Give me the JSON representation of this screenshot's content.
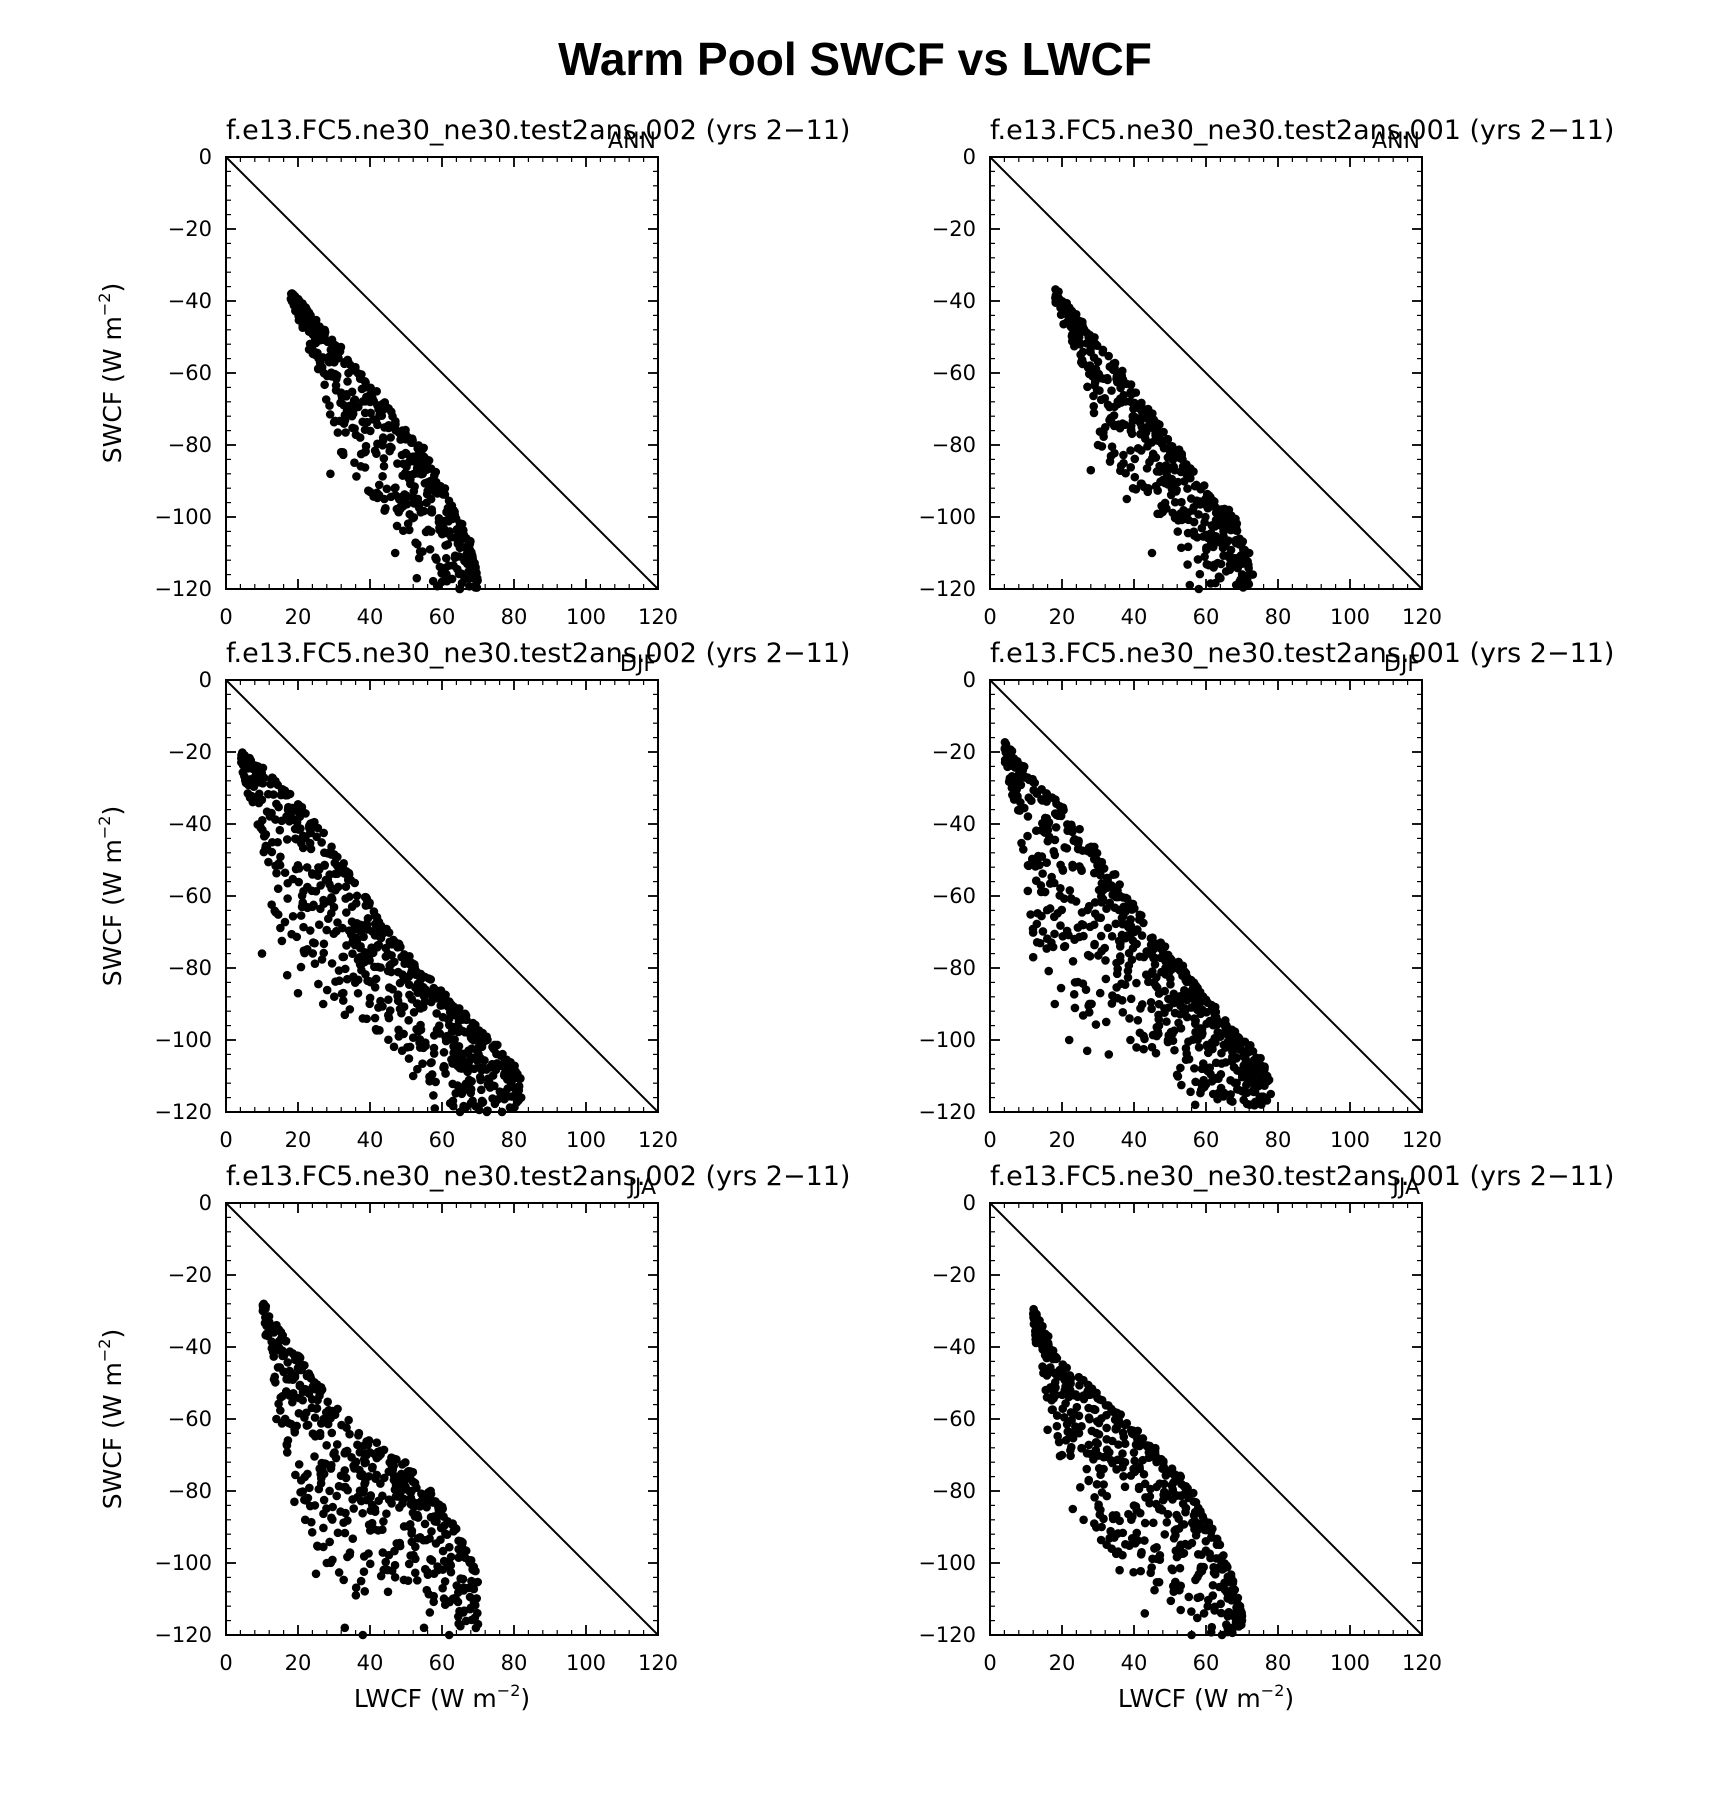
{
  "figure": {
    "title": "Warm Pool SWCF vs LWCF",
    "xlabel": "LWCF (W m",
    "ylabel": "SWCF (W m",
    "unit_exponent": "−2"
  },
  "chart_data": [
    {
      "type": "scatter",
      "title": "f.e13.FC5.ne30_ne30.test2ans.002 (yrs 2−11)",
      "season": "ANN",
      "xlim": [
        0,
        120
      ],
      "ylim": [
        -120,
        0
      ],
      "xticks": [
        0,
        20,
        40,
        60,
        80,
        100,
        120
      ],
      "yticks": [
        0,
        -20,
        -40,
        -60,
        -80,
        -100,
        -120
      ],
      "reference_line": "y = -x",
      "shape": {
        "x0": 18,
        "y0": -37,
        "ridge": [
          [
            18,
            -37
          ],
          [
            25,
            -46
          ],
          [
            35,
            -57
          ],
          [
            45,
            -70
          ],
          [
            55,
            -82
          ],
          [
            62,
            -95
          ],
          [
            68,
            -108
          ],
          [
            70,
            -117
          ]
        ],
        "lower": [
          [
            18,
            -40
          ],
          [
            25,
            -58
          ],
          [
            30,
            -75
          ],
          [
            35,
            -90
          ],
          [
            45,
            -100
          ],
          [
            55,
            -113
          ],
          [
            58,
            -120
          ]
        ],
        "n": 520,
        "outliers": [
          [
            29,
            -88
          ],
          [
            32,
            -82
          ],
          [
            35,
            -72
          ],
          [
            40,
            -93
          ],
          [
            44,
            -95
          ],
          [
            47,
            -110
          ],
          [
            53,
            -117
          ],
          [
            60,
            -118
          ],
          [
            65,
            -120
          ],
          [
            67,
            -113
          ]
        ]
      }
    },
    {
      "type": "scatter",
      "title": "f.e13.FC5.ne30_ne30.test2ans.001 (yrs 2−11)",
      "season": "ANN",
      "xlim": [
        0,
        120
      ],
      "ylim": [
        -120,
        0
      ],
      "xticks": [
        0,
        20,
        40,
        60,
        80,
        100,
        120
      ],
      "yticks": [
        0,
        -20,
        -40,
        -60,
        -80,
        -100,
        -120
      ],
      "reference_line": "y = -x",
      "shape": {
        "x0": 18,
        "y0": -37,
        "ridge": [
          [
            18,
            -37
          ],
          [
            25,
            -46
          ],
          [
            35,
            -58
          ],
          [
            45,
            -72
          ],
          [
            55,
            -85
          ],
          [
            62,
            -96
          ],
          [
            68,
            -100
          ],
          [
            72,
            -113
          ]
        ],
        "lower": [
          [
            18,
            -40
          ],
          [
            24,
            -55
          ],
          [
            28,
            -70
          ],
          [
            32,
            -85
          ],
          [
            42,
            -95
          ],
          [
            52,
            -105
          ],
          [
            55,
            -120
          ]
        ],
        "n": 500,
        "outliers": [
          [
            28,
            -87
          ],
          [
            30,
            -80
          ],
          [
            38,
            -95
          ],
          [
            45,
            -110
          ],
          [
            58,
            -120
          ],
          [
            64,
            -117
          ],
          [
            73,
            -116
          ],
          [
            72,
            -110
          ]
        ]
      }
    },
    {
      "type": "scatter",
      "title": "f.e13.FC5.ne30_ne30.test2ans.002 (yrs 2−11)",
      "season": "DJF",
      "xlim": [
        0,
        120
      ],
      "ylim": [
        -120,
        0
      ],
      "xticks": [
        0,
        20,
        40,
        60,
        80,
        100,
        120
      ],
      "yticks": [
        0,
        -20,
        -40,
        -60,
        -80,
        -100,
        -120
      ],
      "reference_line": "y = -x",
      "shape": {
        "x0": 4,
        "y0": -20,
        "ridge": [
          [
            4,
            -20
          ],
          [
            15,
            -29
          ],
          [
            25,
            -40
          ],
          [
            35,
            -55
          ],
          [
            45,
            -70
          ],
          [
            55,
            -82
          ],
          [
            65,
            -92
          ],
          [
            75,
            -102
          ],
          [
            82,
            -110
          ]
        ],
        "lower": [
          [
            4,
            -22
          ],
          [
            8,
            -40
          ],
          [
            12,
            -60
          ],
          [
            15,
            -75
          ],
          [
            25,
            -85
          ],
          [
            35,
            -92
          ],
          [
            50,
            -105
          ],
          [
            60,
            -118
          ],
          [
            70,
            -120
          ]
        ],
        "n": 720,
        "outliers": [
          [
            10,
            -76
          ],
          [
            17,
            -82
          ],
          [
            20,
            -87
          ],
          [
            27,
            -90
          ],
          [
            33,
            -93
          ],
          [
            38,
            -94
          ],
          [
            48,
            -99
          ],
          [
            52,
            -110
          ],
          [
            58,
            -119
          ],
          [
            65,
            -121
          ],
          [
            75,
            -117
          ],
          [
            82,
            -116
          ]
        ]
      }
    },
    {
      "type": "scatter",
      "title": "f.e13.FC5.ne30_ne30.test2ans.001 (yrs 2−11)",
      "season": "DJF",
      "xlim": [
        0,
        120
      ],
      "ylim": [
        -120,
        0
      ],
      "xticks": [
        0,
        20,
        40,
        60,
        80,
        100,
        120
      ],
      "yticks": [
        0,
        -20,
        -40,
        -60,
        -80,
        -100,
        -120
      ],
      "reference_line": "y = -x",
      "shape": {
        "x0": 4,
        "y0": -18,
        "ridge": [
          [
            4,
            -18
          ],
          [
            15,
            -30
          ],
          [
            25,
            -42
          ],
          [
            35,
            -55
          ],
          [
            45,
            -70
          ],
          [
            55,
            -82
          ],
          [
            65,
            -95
          ],
          [
            75,
            -105
          ],
          [
            78,
            -112
          ]
        ],
        "lower": [
          [
            4,
            -22
          ],
          [
            8,
            -40
          ],
          [
            10,
            -60
          ],
          [
            13,
            -76
          ],
          [
            20,
            -88
          ],
          [
            30,
            -100
          ],
          [
            45,
            -103
          ],
          [
            55,
            -115
          ],
          [
            65,
            -118
          ]
        ],
        "n": 680,
        "outliers": [
          [
            12,
            -77
          ],
          [
            18,
            -90
          ],
          [
            22,
            -100
          ],
          [
            27,
            -103
          ],
          [
            33,
            -104
          ],
          [
            39,
            -100
          ],
          [
            45,
            -102
          ],
          [
            57,
            -118
          ],
          [
            62,
            -115
          ],
          [
            78,
            -115
          ]
        ]
      }
    },
    {
      "type": "scatter",
      "title": "f.e13.FC5.ne30_ne30.test2ans.002 (yrs 2−11)",
      "season": "JJA",
      "xlim": [
        0,
        120
      ],
      "ylim": [
        -120,
        0
      ],
      "xticks": [
        0,
        20,
        40,
        60,
        80,
        100,
        120
      ],
      "yticks": [
        0,
        -20,
        -40,
        -60,
        -80,
        -100,
        -120
      ],
      "reference_line": "y = -x",
      "shape": {
        "x0": 10,
        "y0": -27,
        "ridge": [
          [
            10,
            -27
          ],
          [
            20,
            -43
          ],
          [
            30,
            -57
          ],
          [
            40,
            -66
          ],
          [
            50,
            -73
          ],
          [
            58,
            -82
          ],
          [
            65,
            -92
          ],
          [
            70,
            -103
          ]
        ],
        "lower": [
          [
            10,
            -30
          ],
          [
            14,
            -55
          ],
          [
            18,
            -75
          ],
          [
            25,
            -95
          ],
          [
            35,
            -110
          ],
          [
            45,
            -105
          ],
          [
            55,
            -112
          ],
          [
            65,
            -118
          ]
        ],
        "n": 520,
        "outliers": [
          [
            14,
            -60
          ],
          [
            19,
            -83
          ],
          [
            22,
            -88
          ],
          [
            25,
            -103
          ],
          [
            28,
            -100
          ],
          [
            33,
            -118
          ],
          [
            38,
            -120
          ],
          [
            45,
            -108
          ],
          [
            55,
            -118
          ],
          [
            62,
            -120
          ],
          [
            70,
            -117
          ]
        ]
      }
    },
    {
      "type": "scatter",
      "title": "f.e13.FC5.ne30_ne30.test2ans.001 (yrs 2−11)",
      "season": "JJA",
      "xlim": [
        0,
        120
      ],
      "ylim": [
        -120,
        0
      ],
      "xticks": [
        0,
        20,
        40,
        60,
        80,
        100,
        120
      ],
      "yticks": [
        0,
        -20,
        -40,
        -60,
        -80,
        -100,
        -120
      ],
      "reference_line": "y = -x",
      "shape": {
        "x0": 12,
        "y0": -30,
        "ridge": [
          [
            12,
            -30
          ],
          [
            20,
            -45
          ],
          [
            30,
            -53
          ],
          [
            40,
            -63
          ],
          [
            50,
            -73
          ],
          [
            58,
            -83
          ],
          [
            65,
            -98
          ],
          [
            70,
            -113
          ]
        ],
        "lower": [
          [
            12,
            -35
          ],
          [
            15,
            -50
          ],
          [
            18,
            -65
          ],
          [
            22,
            -80
          ],
          [
            32,
            -95
          ],
          [
            42,
            -105
          ],
          [
            52,
            -113
          ],
          [
            62,
            -120
          ]
        ],
        "n": 520,
        "outliers": [
          [
            16,
            -63
          ],
          [
            20,
            -70
          ],
          [
            23,
            -85
          ],
          [
            26,
            -88
          ],
          [
            31,
            -90
          ],
          [
            36,
            -102
          ],
          [
            43,
            -114
          ],
          [
            56,
            -120
          ],
          [
            66,
            -118
          ],
          [
            70,
            -116
          ]
        ]
      }
    }
  ]
}
